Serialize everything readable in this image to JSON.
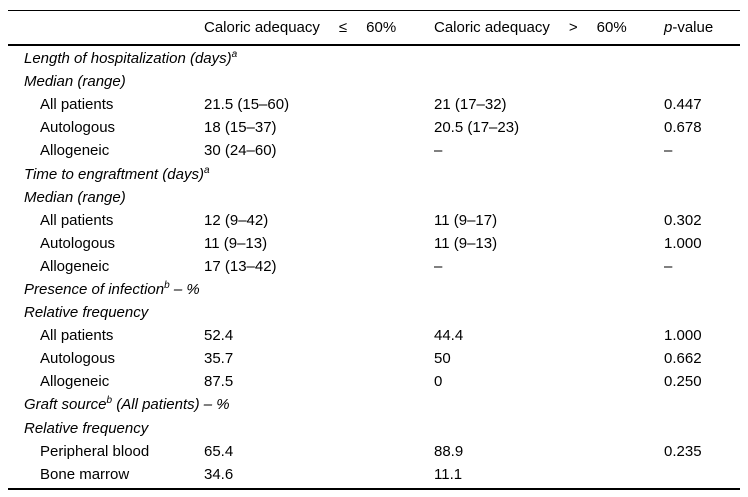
{
  "header": {
    "col2": {
      "label": "Caloric adequacy",
      "op": "≤",
      "pct": "60%"
    },
    "col3": {
      "label": "Caloric adequacy",
      "op": ">",
      "pct": "60%"
    },
    "p_col": {
      "italic": "p",
      "rest": "-value"
    }
  },
  "sections": [
    {
      "title_main": "Length of hospitalization (days)",
      "title_sup": "a",
      "title_suffix": "",
      "subtitle": "Median (range)",
      "rows": [
        {
          "label": "All patients",
          "le60": "21.5 (15–60)",
          "gt60": "21 (17–32)",
          "p": "0.447"
        },
        {
          "label": "Autologous",
          "le60": "18 (15–37)",
          "gt60": "20.5 (17–23)",
          "p": "0.678"
        },
        {
          "label": "Allogeneic",
          "le60": "30 (24–60)",
          "gt60": "–",
          "p": "–"
        }
      ]
    },
    {
      "title_main": "Time to engraftment (days)",
      "title_sup": "a",
      "title_suffix": "",
      "subtitle": "Median (range)",
      "rows": [
        {
          "label": "All patients",
          "le60": "12 (9–42)",
          "gt60": "11 (9–17)",
          "p": "0.302"
        },
        {
          "label": "Autologous",
          "le60": "11 (9–13)",
          "gt60": "11 (9–13)",
          "p": "1.000"
        },
        {
          "label": "Allogeneic",
          "le60": "17 (13–42)",
          "gt60": "–",
          "p": "–"
        }
      ]
    },
    {
      "title_main": "Presence of infection",
      "title_sup": "b",
      "title_suffix": " – %",
      "subtitle": "Relative frequency",
      "rows": [
        {
          "label": "All patients",
          "le60": "52.4",
          "gt60": "44.4",
          "p": "1.000"
        },
        {
          "label": "Autologous",
          "le60": "35.7",
          "gt60": "50",
          "p": "0.662"
        },
        {
          "label": "Allogeneic",
          "le60": "87.5",
          "gt60": "0",
          "p": "0.250"
        }
      ]
    },
    {
      "title_main": "Graft source",
      "title_sup": "b",
      "title_suffix": " (All patients) – %",
      "subtitle": "Relative frequency",
      "rows": [
        {
          "label": "Peripheral blood",
          "le60": "65.4",
          "gt60": "88.9",
          "p": "0.235"
        },
        {
          "label": "Bone marrow",
          "le60": "34.6",
          "gt60": "11.1",
          "p": ""
        }
      ]
    }
  ],
  "colors": {
    "text": "#000000",
    "rule": "#000000",
    "background": "#ffffff"
  }
}
